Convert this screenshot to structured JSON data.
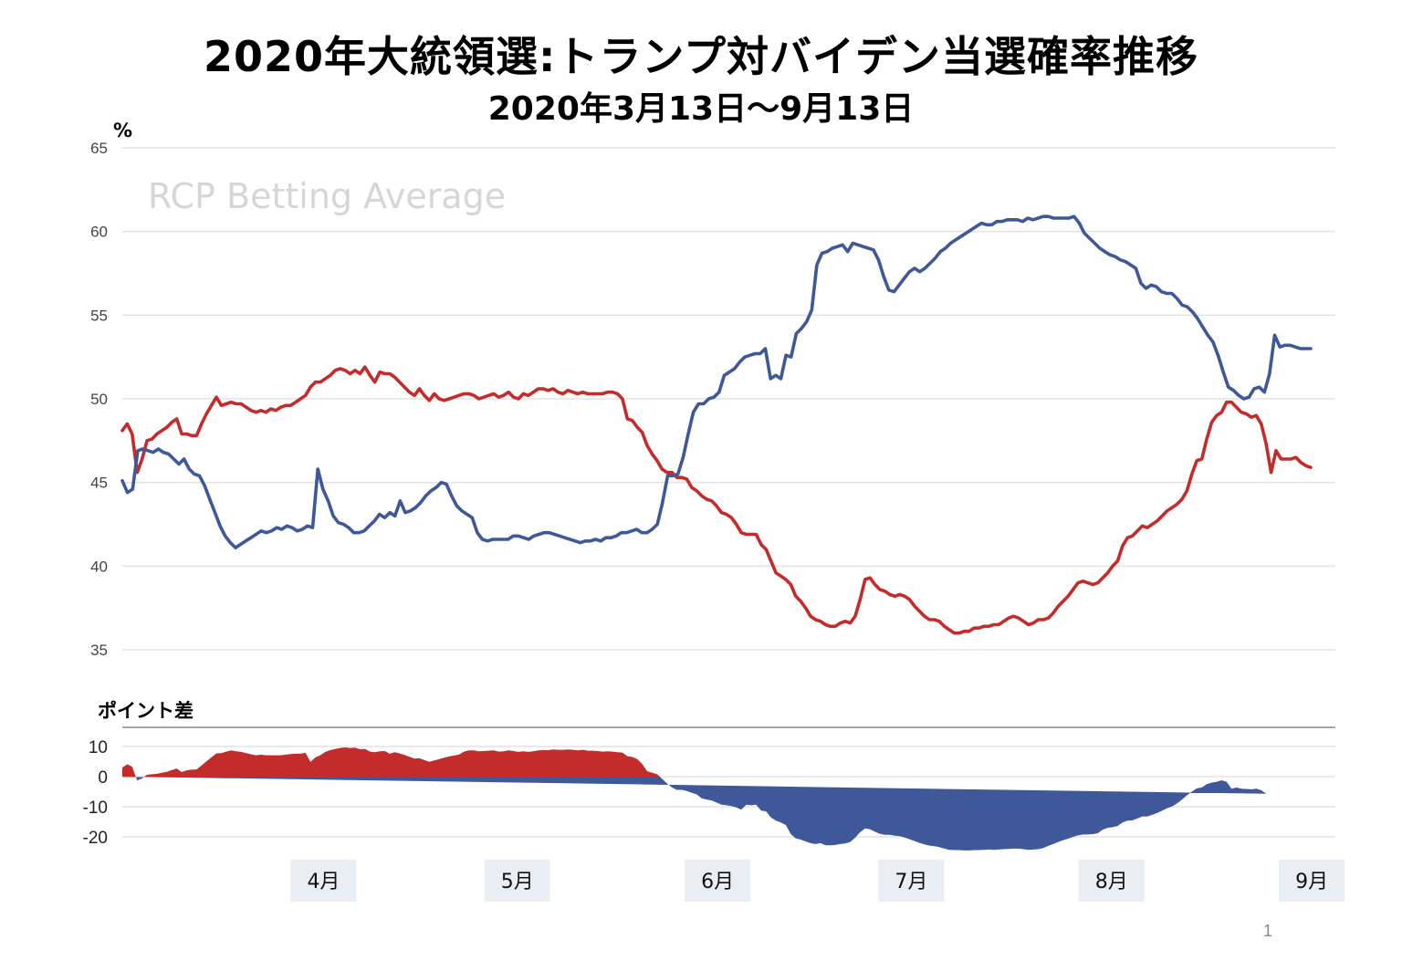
{
  "title": "2020年大統領選:トランプ対バイデン当選確率推移",
  "subtitle": "2020年3月13日～9月13日",
  "page_number": "1",
  "colors": {
    "trump": "#c42b2b",
    "biden": "#3f5899",
    "grid": "#e3e3e3"
  },
  "chart_data": [
    {
      "type": "line",
      "watermark": "RCP Betting Average",
      "ylabel": "%",
      "ylim": [
        35,
        65
      ],
      "yticks": [
        "65",
        "60",
        "55",
        "50",
        "45",
        "40",
        "35"
      ],
      "x_start": "2020-03-13",
      "x_end": "2020-09-13",
      "series": [
        {
          "color": "#c42b2b",
          "values": [
            48.1,
            48.5,
            47.9,
            45.6,
            46.4,
            47.5,
            47.6,
            47.9,
            48.1,
            48.3,
            48.6,
            48.8,
            47.9,
            47.9,
            47.8,
            47.8,
            48.5,
            49.1,
            49.6,
            50.1,
            49.6,
            49.7,
            49.8,
            49.7,
            49.7,
            49.5,
            49.3,
            49.2,
            49.3,
            49.2,
            49.4,
            49.3,
            49.5,
            49.6,
            49.6,
            49.8,
            50.0,
            50.2,
            50.7,
            51.0,
            51.0,
            51.2,
            51.4,
            51.7,
            51.8,
            51.7,
            51.5,
            51.7,
            51.5,
            51.9,
            51.4,
            51.0,
            51.6,
            51.5,
            51.5,
            51.3,
            51.0,
            50.7,
            50.4,
            50.2,
            50.6,
            50.2,
            49.9,
            50.3,
            50.0,
            49.9,
            50.0,
            50.1,
            50.2,
            50.3,
            50.3,
            50.2,
            50.0,
            50.1,
            50.2,
            50.3,
            50.1,
            50.2,
            50.4,
            50.1,
            50.0,
            50.3,
            50.2,
            50.4,
            50.6,
            50.6,
            50.5,
            50.6,
            50.4,
            50.3,
            50.5,
            50.4,
            50.3,
            50.4,
            50.3,
            50.3,
            50.3,
            50.3,
            50.4,
            50.4,
            50.3,
            50.0,
            48.8,
            48.7,
            48.3,
            48.0,
            47.2,
            46.7,
            46.3,
            45.8,
            45.6,
            45.6,
            45.3,
            45.3,
            45.2,
            44.7,
            44.5,
            44.2,
            44.0,
            43.9,
            43.6,
            43.2,
            43.1,
            42.9,
            42.5,
            42.0,
            41.9,
            41.9,
            41.9,
            41.3,
            41.0,
            40.3,
            39.6,
            39.4,
            39.2,
            38.9,
            38.2,
            37.9,
            37.5,
            37.0,
            36.8,
            36.7,
            36.5,
            36.4,
            36.4,
            36.6,
            36.7,
            36.6,
            37.0,
            38.0,
            39.2,
            39.3,
            38.9,
            38.6,
            38.5,
            38.3,
            38.2,
            38.3,
            38.2,
            38.0,
            37.6,
            37.3,
            37.0,
            36.8,
            36.8,
            36.7,
            36.4,
            36.2,
            36.0,
            36.0,
            36.1,
            36.1,
            36.3,
            36.3,
            36.4,
            36.4,
            36.5,
            36.5,
            36.7,
            36.9,
            37.0,
            36.9,
            36.7,
            36.5,
            36.6,
            36.8,
            36.8,
            36.9,
            37.2,
            37.6,
            37.9,
            38.2,
            38.6,
            39.0,
            39.1,
            39.0,
            38.9,
            39.0,
            39.3,
            39.6,
            40.0,
            40.3,
            41.2,
            41.7,
            41.8,
            42.1,
            42.4,
            42.3,
            42.5,
            42.7,
            43.0,
            43.3,
            43.5,
            43.7,
            44.0,
            44.5,
            45.5,
            46.3,
            46.4,
            47.6,
            48.6,
            49.0,
            49.2,
            49.8,
            49.8,
            49.5,
            49.2,
            49.1,
            48.9,
            49.0,
            48.5,
            47.3,
            45.6,
            46.9,
            46.4,
            46.4,
            46.4,
            46.5,
            46.2,
            46.0,
            45.9
          ]
        },
        {
          "color": "#3f5899",
          "values": [
            45.1,
            44.4,
            44.6,
            46.9,
            47.0,
            46.9,
            46.8,
            47.0,
            46.8,
            46.7,
            46.4,
            46.1,
            46.4,
            45.8,
            45.5,
            45.4,
            44.8,
            44.0,
            43.2,
            42.4,
            41.8,
            41.4,
            41.1,
            41.3,
            41.5,
            41.7,
            41.9,
            42.1,
            42.0,
            42.1,
            42.3,
            42.2,
            42.4,
            42.3,
            42.1,
            42.2,
            42.4,
            42.3,
            45.8,
            44.6,
            43.9,
            43.0,
            42.6,
            42.5,
            42.3,
            42.0,
            42.0,
            42.1,
            42.4,
            42.7,
            43.1,
            42.9,
            43.2,
            43.0,
            43.9,
            43.2,
            43.3,
            43.5,
            43.8,
            44.2,
            44.5,
            44.7,
            45.0,
            44.9,
            44.2,
            43.6,
            43.3,
            43.1,
            42.9,
            42.0,
            41.6,
            41.5,
            41.6,
            41.6,
            41.6,
            41.6,
            41.8,
            41.8,
            41.7,
            41.6,
            41.8,
            41.9,
            42.0,
            42.0,
            41.9,
            41.8,
            41.7,
            41.6,
            41.5,
            41.4,
            41.5,
            41.5,
            41.6,
            41.5,
            41.7,
            41.7,
            41.8,
            42.0,
            42.0,
            42.1,
            42.2,
            42.0,
            42.0,
            42.2,
            42.5,
            43.8,
            45.4,
            45.4,
            45.5,
            46.5,
            47.9,
            49.2,
            49.7,
            49.7,
            50.0,
            50.1,
            50.4,
            51.4,
            51.6,
            51.8,
            52.2,
            52.5,
            52.6,
            52.7,
            52.7,
            53.0,
            51.2,
            51.4,
            51.2,
            52.6,
            52.5,
            53.9,
            54.2,
            54.6,
            55.3,
            58.0,
            58.7,
            58.8,
            59.0,
            59.1,
            59.2,
            58.8,
            59.3,
            59.2,
            59.1,
            59.0,
            58.9,
            58.3,
            57.3,
            56.5,
            56.4,
            56.8,
            57.2,
            57.6,
            57.8,
            57.6,
            57.8,
            58.1,
            58.4,
            58.8,
            59.0,
            59.3,
            59.5,
            59.7,
            59.9,
            60.1,
            60.3,
            60.5,
            60.4,
            60.4,
            60.6,
            60.6,
            60.7,
            60.7,
            60.7,
            60.6,
            60.8,
            60.7,
            60.8,
            60.9,
            60.9,
            60.8,
            60.8,
            60.8,
            60.8,
            60.9,
            60.5,
            59.9,
            59.6,
            59.3,
            59.0,
            58.8,
            58.6,
            58.5,
            58.3,
            58.2,
            58.0,
            57.8,
            56.9,
            56.6,
            56.8,
            56.7,
            56.4,
            56.3,
            56.3,
            56.0,
            55.6,
            55.5,
            55.2,
            54.8,
            54.3,
            53.8,
            53.4,
            52.6,
            51.6,
            50.7,
            50.5,
            50.2,
            50.0,
            50.1,
            50.6,
            50.7,
            50.4,
            51.5,
            53.8,
            53.1,
            53.2,
            53.2,
            53.1,
            53.0,
            53.0,
            53.0
          ]
        }
      ]
    },
    {
      "type": "area",
      "title": "ポイント差",
      "ylim": [
        -22,
        15
      ],
      "yticks": [
        "10",
        "0",
        "-10",
        "-20"
      ],
      "x_start": "2020-03-13",
      "x_end": "2020-09-13",
      "categories": [
        "4月",
        "5月",
        "6月",
        "7月",
        "8月",
        "9月"
      ],
      "colors": {
        "positive": "#c42b2b",
        "negative": "#3f5899"
      }
    }
  ]
}
